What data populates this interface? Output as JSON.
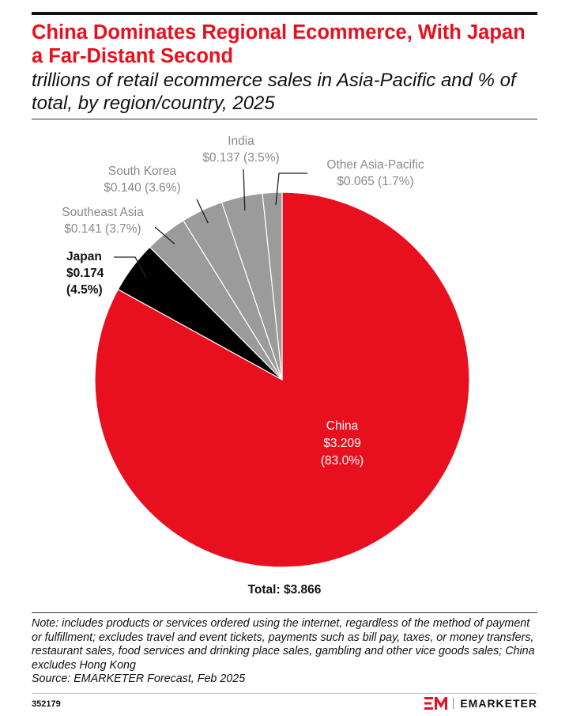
{
  "header": {
    "title": "China Dominates Regional Ecommerce, With Japan a Far-Distant Second",
    "subtitle": "trillions of retail ecommerce sales in Asia-Pacific and % of total, by region/country, 2025"
  },
  "chart_data": {
    "type": "pie",
    "title": "China Dominates Regional Ecommerce, With Japan a Far-Distant Second",
    "unit": "trillions",
    "slices": [
      {
        "name": "China",
        "value": 3.209,
        "value_label": "$3.209",
        "pct_label": "(83.0%)",
        "color": "#e8101f"
      },
      {
        "name": "Japan",
        "value": 0.174,
        "value_label": "$0.174",
        "pct_label": "(4.5%)",
        "color": "#000000"
      },
      {
        "name": "Southeast Asia",
        "value": 0.141,
        "value_label": "$0.141 (3.7%)",
        "color": "#9b9b9b"
      },
      {
        "name": "South Korea",
        "value": 0.14,
        "value_label": "$0.140 (3.6%)",
        "color": "#9b9b9b"
      },
      {
        "name": "India",
        "value": 0.137,
        "value_label": "$0.137 (3.5%)",
        "color": "#9b9b9b"
      },
      {
        "name": "Other Asia-Pacific",
        "value": 0.065,
        "value_label": "$0.065 (1.7%)",
        "color": "#9b9b9b"
      }
    ],
    "total_label": "Total: $3.866"
  },
  "footer": {
    "note": "Note: includes products or services ordered using the internet, regardless of the method of payment or fulfillment; excludes travel and event tickets, payments such as bill pay, taxes, or money transfers, restaurant sales, food services and drinking place sales, gambling and other vice goods sales; China excludes Hong Kong",
    "source": "Source: EMARKETER Forecast, Feb 2025",
    "chart_id": "352179",
    "brand": "EMARKETER",
    "brand_mark": "EM"
  },
  "colors": {
    "accent": "#e8101f",
    "gray_label": "#8a8a8a"
  }
}
